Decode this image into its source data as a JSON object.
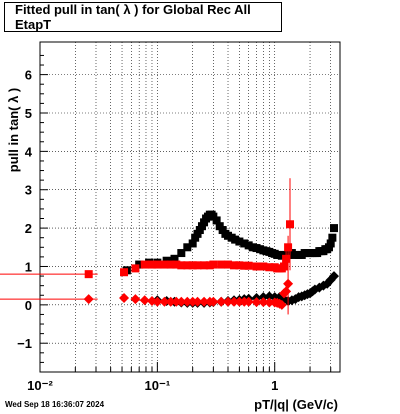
{
  "header": {
    "title": "Fitted pull in tan( λ ) for Global Rec All EtapT"
  },
  "footer": {
    "timestamp": "Wed Sep 18 16:36:07 2024"
  },
  "chart_data": {
    "type": "scatter",
    "title": "Fitted pull in tan( λ ) for Global Rec All EtapT",
    "xlabel": "pT/|q| (GeV/c)",
    "ylabel": "pull in tan( λ )",
    "xscale": "log",
    "xlim": [
      0.01,
      3.6
    ],
    "ylim": [
      -1.75,
      6.85
    ],
    "grid": true,
    "x_tick_labels": [
      "10⁻²",
      "10⁻¹",
      "1"
    ],
    "y_tick_labels": [
      "−1",
      "0",
      "1",
      "2",
      "3",
      "4",
      "5",
      "6"
    ],
    "series": [
      {
        "marker": "square",
        "color": "#000000",
        "x": [
          0.055,
          0.07,
          0.085,
          0.1,
          0.12,
          0.14,
          0.16,
          0.18,
          0.2,
          0.21,
          0.22,
          0.23,
          0.24,
          0.25,
          0.26,
          0.27,
          0.28,
          0.29,
          0.3,
          0.32,
          0.34,
          0.36,
          0.38,
          0.4,
          0.43,
          0.46,
          0.5,
          0.55,
          0.6,
          0.65,
          0.7,
          0.75,
          0.8,
          0.85,
          0.9,
          0.95,
          1.0,
          1.05,
          1.1,
          1.15,
          1.2,
          1.25,
          1.3,
          1.4,
          1.5,
          1.6,
          1.7,
          1.8,
          1.9,
          2.0,
          2.1,
          2.2,
          2.3,
          2.4,
          2.5,
          2.6,
          2.7,
          2.8,
          2.9,
          3.0,
          3.1,
          3.2
        ],
        "y": [
          0.9,
          1.05,
          1.1,
          1.1,
          1.15,
          1.2,
          1.35,
          1.5,
          1.6,
          1.75,
          1.85,
          1.95,
          2.05,
          2.15,
          2.25,
          2.3,
          2.35,
          2.35,
          2.3,
          2.2,
          2.05,
          1.95,
          1.85,
          1.8,
          1.75,
          1.7,
          1.65,
          1.6,
          1.55,
          1.5,
          1.48,
          1.45,
          1.42,
          1.4,
          1.38,
          1.35,
          1.33,
          1.3,
          1.3,
          1.28,
          1.3,
          1.3,
          1.3,
          1.35,
          1.3,
          1.3,
          1.3,
          1.35,
          1.35,
          1.35,
          1.35,
          1.35,
          1.35,
          1.4,
          1.4,
          1.4,
          1.45,
          1.45,
          1.5,
          1.6,
          1.75,
          2.0
        ]
      },
      {
        "marker": "diamond",
        "color": "#000000",
        "x": [
          0.1,
          0.12,
          0.14,
          0.16,
          0.18,
          0.2,
          0.22,
          0.25,
          0.28,
          0.3,
          0.35,
          0.4,
          0.45,
          0.5,
          0.55,
          0.6,
          0.7,
          0.8,
          0.9,
          1.0,
          1.1,
          1.2,
          1.3,
          1.4,
          1.5,
          1.6,
          1.7,
          1.8,
          1.9,
          2.0,
          2.1,
          2.2,
          2.4,
          2.6,
          2.8,
          3.0,
          3.2
        ],
        "y": [
          0.12,
          0.1,
          0.08,
          0.06,
          0.05,
          0.05,
          0.05,
          0.05,
          0.06,
          0.07,
          0.08,
          0.1,
          0.12,
          0.13,
          0.15,
          0.16,
          0.18,
          0.2,
          0.22,
          0.2,
          0.2,
          0.15,
          0.1,
          0.12,
          0.15,
          0.2,
          0.22,
          0.25,
          0.28,
          0.3,
          0.35,
          0.4,
          0.45,
          0.5,
          0.55,
          0.65,
          0.75
        ]
      },
      {
        "marker": "square",
        "color": "#ff0000",
        "x": [
          0.026,
          0.052,
          0.065,
          0.078,
          0.09,
          0.1,
          0.115,
          0.13,
          0.145,
          0.16,
          0.18,
          0.2,
          0.22,
          0.25,
          0.28,
          0.3,
          0.35,
          0.4,
          0.45,
          0.5,
          0.55,
          0.6,
          0.7,
          0.8,
          0.9,
          1.0,
          1.05,
          1.1,
          1.15,
          1.2,
          1.25,
          1.3,
          1.35
        ],
        "y": [
          0.8,
          0.85,
          0.95,
          1.05,
          1.05,
          1.05,
          1.05,
          1.05,
          1.05,
          1.03,
          1.03,
          1.03,
          1.03,
          1.03,
          1.03,
          1.05,
          1.05,
          1.05,
          1.03,
          1.03,
          1.02,
          1.02,
          1.0,
          1.0,
          0.98,
          0.98,
          0.95,
          0.95,
          0.95,
          1.0,
          1.2,
          1.5,
          2.1
        ],
        "yerr": [
          0.02,
          0.03,
          0.03,
          0.03,
          0.03,
          0.03,
          0.03,
          0.03,
          0.03,
          0.03,
          0.03,
          0.03,
          0.03,
          0.03,
          0.03,
          0.03,
          0.03,
          0.03,
          0.03,
          0.03,
          0.03,
          0.03,
          0.03,
          0.04,
          0.05,
          0.06,
          0.06,
          0.08,
          0.1,
          0.12,
          0.2,
          0.3,
          1.2
        ],
        "xerr_left": [
          0.024
        ],
        "xerr_right": [
          0.005
        ]
      },
      {
        "marker": "diamond",
        "color": "#ff0000",
        "x": [
          0.026,
          0.052,
          0.065,
          0.078,
          0.09,
          0.1,
          0.115,
          0.13,
          0.145,
          0.16,
          0.18,
          0.2,
          0.22,
          0.25,
          0.28,
          0.3,
          0.35,
          0.4,
          0.45,
          0.5,
          0.55,
          0.6,
          0.7,
          0.8,
          0.9,
          1.0,
          1.05,
          1.1,
          1.15,
          1.2,
          1.25,
          1.3
        ],
        "y": [
          0.15,
          0.18,
          0.15,
          0.12,
          0.1,
          0.08,
          0.08,
          0.08,
          0.08,
          0.08,
          0.08,
          0.08,
          0.08,
          0.08,
          0.08,
          0.08,
          0.08,
          0.08,
          0.08,
          0.08,
          0.08,
          0.08,
          0.07,
          0.07,
          0.06,
          0.06,
          0.05,
          0.03,
          0.0,
          0.3,
          0.35,
          0.55
        ],
        "yerr": [
          0.02,
          0.03,
          0.03,
          0.03,
          0.03,
          0.03,
          0.03,
          0.03,
          0.03,
          0.03,
          0.03,
          0.03,
          0.03,
          0.03,
          0.03,
          0.03,
          0.03,
          0.03,
          0.03,
          0.03,
          0.03,
          0.03,
          0.03,
          0.04,
          0.05,
          0.06,
          0.06,
          0.08,
          0.1,
          0.12,
          0.15,
          0.8
        ],
        "xerr_left": [
          0.024
        ],
        "xerr_right": [
          0.005
        ]
      }
    ]
  }
}
